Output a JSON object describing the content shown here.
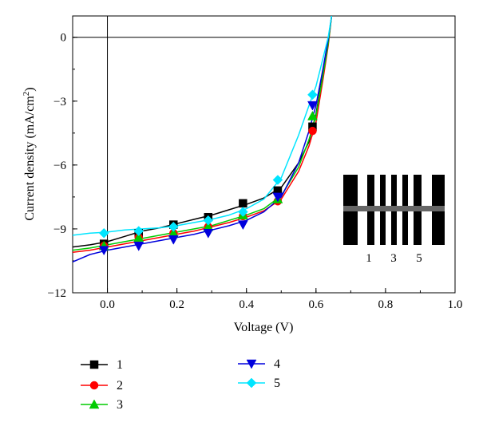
{
  "chart_data": {
    "type": "line",
    "xlabel": "Voltage (V)",
    "ylabel_main": "Current density (mA/cm",
    "ylabel_sup": "2",
    "ylabel_close": ")",
    "xlim": [
      -0.1,
      1.0
    ],
    "ylim": [
      -12,
      1
    ],
    "xticks": [
      0.0,
      0.2,
      0.4,
      0.6,
      0.8,
      1.0
    ],
    "xtick_labels": [
      "0.0",
      "0.2",
      "0.4",
      "0.6",
      "0.8",
      "1.0"
    ],
    "yticks": [
      0,
      -3,
      -6,
      -9,
      -12
    ],
    "ytick_labels": [
      "0",
      "−3",
      "−6",
      "−9",
      "−12"
    ],
    "reference_lines": {
      "x": 0,
      "y": 0
    },
    "grid": false,
    "legend_position": "below-left",
    "series": [
      {
        "name": "1",
        "color": "#000000",
        "marker": "square",
        "x": [
          -0.1,
          -0.05,
          0.0,
          0.05,
          0.1,
          0.15,
          0.2,
          0.25,
          0.3,
          0.35,
          0.4,
          0.45,
          0.5,
          0.55,
          0.58,
          0.6,
          0.62,
          0.635,
          0.645
        ],
        "y": [
          -9.85,
          -9.75,
          -9.6,
          -9.35,
          -9.1,
          -8.95,
          -8.75,
          -8.55,
          -8.35,
          -8.1,
          -7.85,
          -7.55,
          -7.05,
          -5.9,
          -4.9,
          -3.6,
          -1.7,
          -0.2,
          1.0
        ],
        "marker_x": [
          -0.01,
          0.09,
          0.19,
          0.29,
          0.39,
          0.49,
          0.59
        ],
        "marker_y": [
          -9.7,
          -9.2,
          -8.8,
          -8.45,
          -7.8,
          -7.2,
          -4.2
        ]
      },
      {
        "name": "2",
        "color": "#ff0000",
        "marker": "circle",
        "x": [
          -0.1,
          -0.05,
          0.0,
          0.05,
          0.1,
          0.15,
          0.2,
          0.25,
          0.3,
          0.35,
          0.4,
          0.45,
          0.5,
          0.55,
          0.58,
          0.6,
          0.62,
          0.635,
          0.645
        ],
        "y": [
          -10.1,
          -10.0,
          -9.85,
          -9.7,
          -9.55,
          -9.4,
          -9.25,
          -9.1,
          -8.9,
          -8.7,
          -8.45,
          -8.15,
          -7.6,
          -6.3,
          -5.1,
          -4.0,
          -2.0,
          -0.4,
          1.0
        ],
        "marker_x": [
          -0.01,
          0.09,
          0.19,
          0.29,
          0.39,
          0.49,
          0.59
        ],
        "marker_y": [
          -9.8,
          -9.4,
          -9.2,
          -8.9,
          -8.4,
          -7.7,
          -4.4
        ]
      },
      {
        "name": "3",
        "color": "#00cc00",
        "marker": "triangle-up",
        "x": [
          -0.1,
          -0.05,
          0.0,
          0.05,
          0.1,
          0.15,
          0.2,
          0.25,
          0.3,
          0.35,
          0.4,
          0.45,
          0.5,
          0.55,
          0.58,
          0.6,
          0.62,
          0.635,
          0.645
        ],
        "y": [
          -10.0,
          -9.9,
          -9.75,
          -9.6,
          -9.45,
          -9.3,
          -9.15,
          -9.0,
          -8.85,
          -8.6,
          -8.35,
          -8.05,
          -7.45,
          -6.1,
          -4.8,
          -3.7,
          -1.8,
          -0.3,
          1.0
        ],
        "marker_x": [
          -0.01,
          0.09,
          0.19,
          0.29,
          0.39,
          0.49,
          0.59
        ],
        "marker_y": [
          -9.8,
          -9.4,
          -9.2,
          -8.9,
          -8.35,
          -7.6,
          -3.7
        ]
      },
      {
        "name": "4",
        "color": "#0000dd",
        "marker": "triangle-down",
        "x": [
          -0.1,
          -0.05,
          0.0,
          0.05,
          0.1,
          0.15,
          0.2,
          0.25,
          0.3,
          0.35,
          0.4,
          0.45,
          0.5,
          0.55,
          0.58,
          0.6,
          0.62,
          0.635,
          0.645
        ],
        "y": [
          -10.55,
          -10.2,
          -10.0,
          -9.85,
          -9.7,
          -9.55,
          -9.4,
          -9.25,
          -9.05,
          -8.85,
          -8.6,
          -8.2,
          -7.5,
          -5.9,
          -4.4,
          -3.2,
          -1.5,
          -0.1,
          1.0
        ],
        "marker_x": [
          -0.01,
          0.09,
          0.19,
          0.29,
          0.39,
          0.49,
          0.59
        ],
        "marker_y": [
          -10.0,
          -9.8,
          -9.5,
          -9.2,
          -8.8,
          -7.5,
          -3.2
        ]
      },
      {
        "name": "5",
        "color": "#00e5ff",
        "marker": "diamond",
        "x": [
          -0.1,
          -0.05,
          0.0,
          0.05,
          0.1,
          0.15,
          0.2,
          0.25,
          0.3,
          0.35,
          0.4,
          0.45,
          0.5,
          0.55,
          0.58,
          0.6,
          0.62,
          0.635,
          0.645
        ],
        "y": [
          -9.3,
          -9.2,
          -9.15,
          -9.05,
          -9.0,
          -8.95,
          -8.85,
          -8.7,
          -8.55,
          -8.35,
          -8.05,
          -7.6,
          -6.6,
          -4.6,
          -3.2,
          -2.3,
          -1.0,
          0.0,
          1.0
        ],
        "marker_x": [
          -0.01,
          0.09,
          0.19,
          0.29,
          0.39,
          0.49,
          0.59
        ],
        "marker_y": [
          -9.2,
          -9.1,
          -8.9,
          -8.6,
          -8.2,
          -6.7,
          -2.7
        ]
      }
    ]
  },
  "inset": {
    "labels": [
      "1",
      "3",
      "5"
    ]
  }
}
